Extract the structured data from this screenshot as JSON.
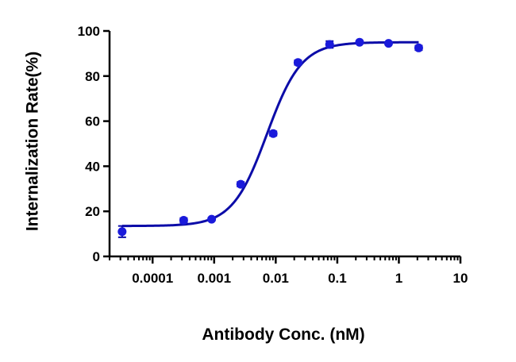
{
  "chart_data": {
    "type": "scatter",
    "title": "",
    "xlabel": "Antibody Conc. (nM)",
    "ylabel": "Internalization Rate(%)",
    "x_scale": "log",
    "xlim": [
      2e-05,
      10
    ],
    "ylim": [
      0,
      100
    ],
    "x_ticks": [
      {
        "value": 0.0001,
        "label": "0.0001"
      },
      {
        "value": 0.001,
        "label": "0.001"
      },
      {
        "value": 0.01,
        "label": "0.01"
      },
      {
        "value": 0.1,
        "label": "0.1"
      },
      {
        "value": 1,
        "label": "1"
      },
      {
        "value": 10,
        "label": "10"
      }
    ],
    "y_ticks": [
      {
        "value": 0,
        "label": "0"
      },
      {
        "value": 20,
        "label": "20"
      },
      {
        "value": 40,
        "label": "40"
      },
      {
        "value": 60,
        "label": "60"
      },
      {
        "value": 80,
        "label": "80"
      },
      {
        "value": 100,
        "label": "100"
      }
    ],
    "grid": false,
    "legend": "none",
    "color": "#1a1adb",
    "fit_color": "#0c0ca8",
    "series": [
      {
        "x": [
          3.2e-05,
          0.00032,
          0.00091,
          0.0027,
          0.0091,
          0.023,
          0.075,
          0.23,
          0.68,
          2.1
        ],
        "y": [
          11,
          16,
          16.5,
          32,
          54.5,
          86,
          94,
          95,
          94.5,
          92.5
        ],
        "error": [
          2.5,
          1,
          0.5,
          1,
          1,
          1,
          1.5,
          0.5,
          0.5,
          1
        ]
      }
    ],
    "fit_curve": {
      "type": "four-parameter logistic",
      "bottom": 13.5,
      "top": 95,
      "ec50": 0.0072,
      "hill_slope": 1.55,
      "x_range": [
        3.2e-05,
        2.1
      ]
    }
  }
}
